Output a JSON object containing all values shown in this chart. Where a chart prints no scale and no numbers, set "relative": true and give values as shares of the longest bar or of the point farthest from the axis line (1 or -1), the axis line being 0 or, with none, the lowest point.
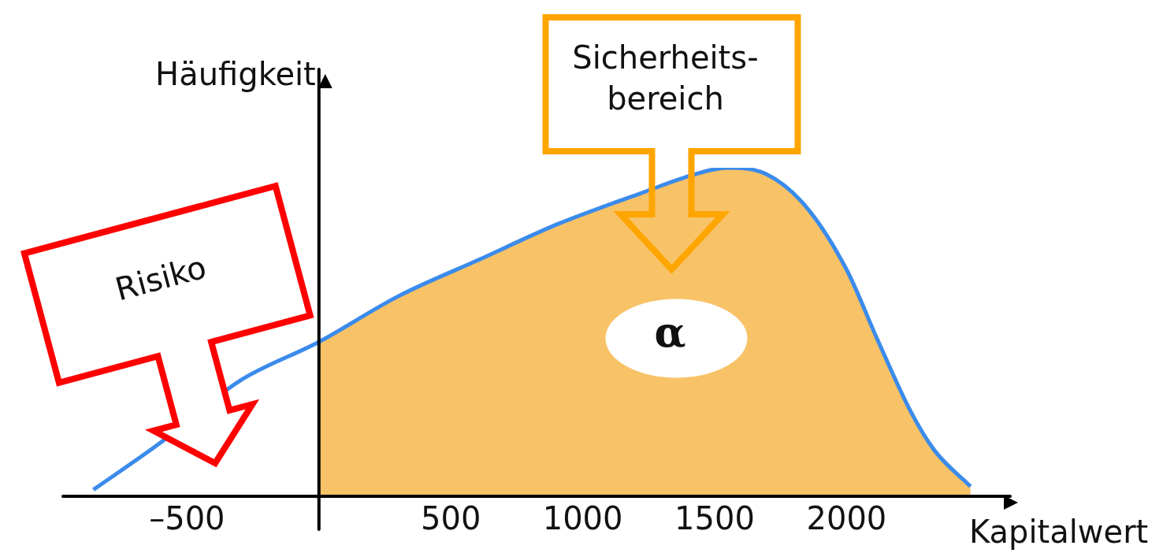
{
  "chart_data": {
    "type": "line",
    "relative": true,
    "xlabel": "Kapitalwert",
    "ylabel": "Häufigkeit",
    "marker": "none",
    "xlim": [
      -970,
      2620
    ],
    "xticks": [
      {
        "value": -500,
        "label": "–500"
      },
      500,
      1000,
      1500,
      2000
    ],
    "series": [
      {
        "type": "line",
        "color": "#3b8beb",
        "x": [
          -855,
          -606,
          -303,
          0,
          303,
          606,
          909,
          1212,
          1424,
          1545,
          1697,
          1848,
          2000,
          2121,
          2242,
          2333,
          2470
        ],
        "values": [
          0.02,
          0.16,
          0.35,
          0.47,
          0.61,
          0.72,
          0.83,
          0.92,
          0.98,
          1,
          0.98,
          0.88,
          0.69,
          0.47,
          0.26,
          0.14,
          0.03
        ]
      },
      {
        "type": "area",
        "color": "#f5a623",
        "x": [
          0,
          303,
          606,
          909,
          1212,
          1424,
          1545,
          1697,
          1848,
          2000,
          2121,
          2242,
          2333,
          2470
        ],
        "values": [
          0.47,
          0.61,
          0.72,
          0.83,
          0.92,
          0.98,
          1,
          0.98,
          0.88,
          0.69,
          0.47,
          0.26,
          0.14,
          0.03
        ]
      }
    ],
    "annotations": [
      "Risiko",
      "Sicherheits-bereich",
      "α"
    ]
  }
}
